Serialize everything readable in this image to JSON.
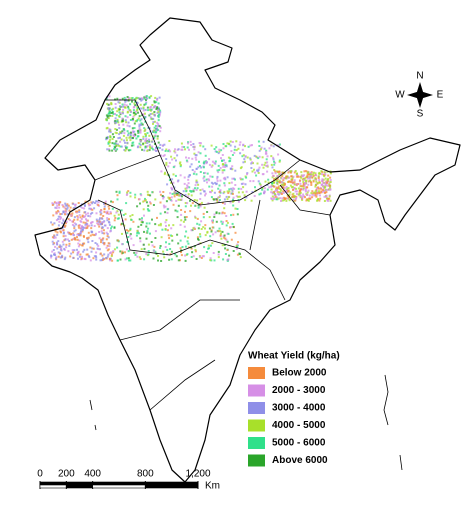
{
  "legend": {
    "title": "Wheat Yield (kg/ha)",
    "items": [
      {
        "label": "Below 2000",
        "color": "#f58b3c"
      },
      {
        "label": "2000 - 3000",
        "color": "#d68fe6"
      },
      {
        "label": "3000 - 4000",
        "color": "#8f8fe8"
      },
      {
        "label": "4000 - 5000",
        "color": "#a8e02a"
      },
      {
        "label": "5000 - 6000",
        "color": "#2fe08a"
      },
      {
        "label": "Above 6000",
        "color": "#2aa52a"
      }
    ]
  },
  "scale_bar": {
    "ticks": [
      0,
      200,
      400,
      800,
      {
        "value": 1200,
        "label": "1,200"
      }
    ],
    "unit": "Km"
  },
  "compass": {
    "n": "N",
    "s": "S",
    "e": "E",
    "w": "W"
  }
}
